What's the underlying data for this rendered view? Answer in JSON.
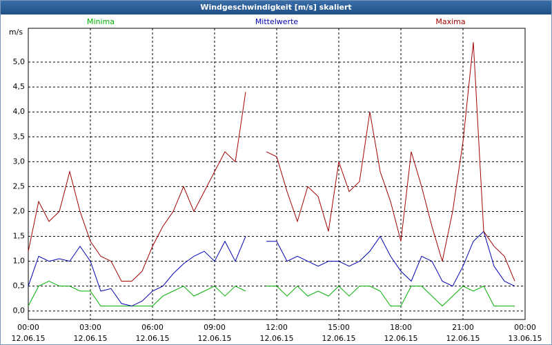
{
  "chart_data": {
    "type": "line",
    "title": "Windgeschwindigkeit [m/s] skaliert",
    "ylabel": "m/s",
    "x": [
      0,
      0.5,
      1,
      1.5,
      2,
      2.5,
      3,
      3.5,
      4,
      4.5,
      5,
      5.5,
      6,
      6.5,
      7,
      7.5,
      8,
      8.5,
      9,
      9.5,
      10,
      10.5,
      11,
      11.5,
      12,
      12.5,
      13,
      13.5,
      14,
      14.5,
      15,
      15.5,
      16,
      16.5,
      17,
      17.5,
      18,
      18.5,
      19,
      19.5,
      20,
      20.5,
      21,
      21.5,
      22,
      22.5,
      23,
      23.5
    ],
    "series": [
      {
        "name": "Minima",
        "color": "#00b000",
        "values": [
          0.1,
          0.5,
          0.6,
          0.5,
          0.5,
          0.4,
          0.4,
          0.1,
          0.1,
          0.1,
          0.1,
          0.1,
          0.1,
          0.3,
          0.4,
          0.5,
          0.3,
          0.4,
          0.5,
          0.3,
          0.5,
          0.4,
          null,
          0.5,
          0.5,
          0.3,
          0.5,
          0.3,
          0.4,
          0.3,
          0.5,
          0.3,
          0.5,
          0.5,
          0.4,
          0.1,
          0.1,
          0.5,
          0.5,
          0.3,
          0.1,
          0.3,
          0.5,
          0.4,
          0.5,
          0.1,
          0.1,
          0.1
        ]
      },
      {
        "name": "Mittelwerte",
        "color": "#0000b0",
        "values": [
          0.5,
          1.1,
          1.0,
          1.05,
          1.0,
          1.3,
          1.0,
          0.4,
          0.45,
          0.15,
          0.1,
          0.2,
          0.4,
          0.5,
          0.75,
          0.95,
          1.1,
          1.2,
          1.0,
          1.4,
          1.0,
          1.5,
          null,
          1.4,
          1.4,
          1.0,
          1.1,
          1.0,
          0.9,
          1.0,
          1.0,
          0.9,
          1.0,
          1.2,
          1.5,
          1.1,
          0.8,
          0.6,
          1.1,
          1.0,
          0.6,
          0.5,
          0.9,
          1.4,
          1.6,
          0.9,
          0.6,
          0.5
        ]
      },
      {
        "name": "Maxima",
        "color": "#a00000",
        "values": [
          1.2,
          2.2,
          1.8,
          2.0,
          2.8,
          2.0,
          1.4,
          1.1,
          1.0,
          0.6,
          0.6,
          0.8,
          1.3,
          1.7,
          2.0,
          2.5,
          2.0,
          2.4,
          2.8,
          3.2,
          3.0,
          4.4,
          null,
          3.2,
          3.1,
          2.4,
          1.8,
          2.5,
          2.3,
          1.6,
          3.0,
          2.4,
          2.6,
          4.0,
          2.8,
          2.2,
          1.4,
          3.2,
          2.5,
          1.7,
          1.0,
          2.0,
          3.4,
          5.4,
          1.6,
          1.3,
          1.1,
          0.6
        ]
      }
    ],
    "xlim": [
      0,
      24
    ],
    "xticks": [
      {
        "value": 0,
        "label": "00:00\n12.06.15"
      },
      {
        "value": 3,
        "label": "03:00\n12.06.15"
      },
      {
        "value": 6,
        "label": "06:00\n12.06.15"
      },
      {
        "value": 9,
        "label": "09:00\n12.06.15"
      },
      {
        "value": 12,
        "label": "12:00\n12.06.15"
      },
      {
        "value": 15,
        "label": "15:00\n12.06.15"
      },
      {
        "value": 18,
        "label": "18:00\n12.06.15"
      },
      {
        "value": 21,
        "label": "21:00\n12.06.15"
      },
      {
        "value": 24,
        "label": "00:00\n13.06.15"
      }
    ],
    "ylim": [
      -0.17,
      5.68
    ],
    "yticks": [
      {
        "value": 0,
        "label": "0,0"
      },
      {
        "value": 0.5,
        "label": "0,5"
      },
      {
        "value": 1,
        "label": "1,0"
      },
      {
        "value": 1.5,
        "label": "1,5"
      },
      {
        "value": 2,
        "label": "2,0"
      },
      {
        "value": 2.5,
        "label": "2,5"
      },
      {
        "value": 3,
        "label": "3,0"
      },
      {
        "value": 3.5,
        "label": "3,5"
      },
      {
        "value": 4,
        "label": "4,0"
      },
      {
        "value": 4.5,
        "label": "4,5"
      },
      {
        "value": 5,
        "label": "5,0"
      }
    ],
    "grid": true
  }
}
